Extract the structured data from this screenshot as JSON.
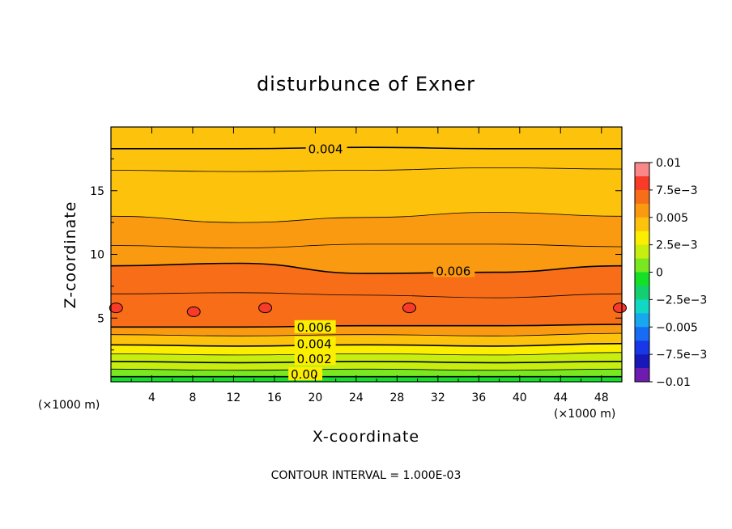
{
  "chart_data": {
    "type": "contour",
    "title": "disturbunce of Exner",
    "xlabel": "X-coordinate",
    "ylabel": "Z-coordinate",
    "x_unit": "(×1000 m)",
    "y_unit": "(×1000 m)",
    "xlim": [
      0,
      50
    ],
    "ylim": [
      0,
      20
    ],
    "x_ticks": [
      4,
      8,
      12,
      16,
      20,
      24,
      28,
      32,
      36,
      40,
      44,
      48
    ],
    "y_ticks": [
      5,
      10,
      15
    ],
    "contour_interval": "CONTOUR INTERVAL = 1.000E-03",
    "colorbar": {
      "min": -0.01,
      "max": 0.01,
      "step": 0.00125,
      "tick_labels": [
        "0.01",
        "7.5e−3",
        "0.005",
        "2.5e−3",
        "0",
        "−2.5e−3",
        "−0.005",
        "−7.5e−3",
        "−0.01"
      ],
      "colors": [
        "#fa8888",
        "#f83a28",
        "#f86e18",
        "#fa9a10",
        "#fcc20c",
        "#fcee00",
        "#c8ee10",
        "#7ae820",
        "#14e028",
        "#12d070",
        "#10d8c4",
        "#18a8f0",
        "#186cf4",
        "#1838e8",
        "#1818b8",
        "#6e1cb0"
      ]
    },
    "contour_labels": [
      {
        "text": "0.004",
        "x": 19.3,
        "z": 18.2
      },
      {
        "text": "0.006",
        "x": 31.8,
        "z": 8.6
      },
      {
        "text": "0.006",
        "x": 18.2,
        "z": 4.2
      },
      {
        "text": "0.004",
        "x": 18.2,
        "z": 2.9
      },
      {
        "text": "0.002",
        "x": 18.2,
        "z": 1.7
      },
      {
        "text": "0.00",
        "x": 17.6,
        "z": 0.5
      }
    ],
    "bands": [
      {
        "z": [
          18.3,
          18.3,
          18.4,
          18.3,
          18.3
        ],
        "level": 0.004
      },
      {
        "z": [
          16.6,
          16.5,
          16.6,
          16.8,
          16.7
        ],
        "level": 0.0045
      },
      {
        "z": [
          13.0,
          12.5,
          12.9,
          13.3,
          13.0
        ],
        "level": 0.005
      },
      {
        "z": [
          10.7,
          10.5,
          10.8,
          10.8,
          10.6
        ],
        "level": 0.0055
      },
      {
        "z": [
          9.1,
          9.3,
          8.5,
          8.6,
          9.1
        ],
        "level": 0.006
      },
      {
        "z": [
          6.9,
          7.0,
          6.8,
          6.6,
          6.9
        ],
        "level": 0.0065
      },
      {
        "z": [
          4.3,
          4.3,
          4.4,
          4.4,
          4.5
        ],
        "level": 0.006
      },
      {
        "z": [
          3.7,
          3.6,
          3.7,
          3.6,
          3.8
        ],
        "level": 0.005
      },
      {
        "z": [
          2.9,
          2.8,
          2.9,
          2.8,
          3.0
        ],
        "level": 0.004
      },
      {
        "z": [
          2.2,
          2.1,
          2.2,
          2.1,
          2.3
        ],
        "level": 0.003
      },
      {
        "z": [
          1.6,
          1.5,
          1.6,
          1.5,
          1.6
        ],
        "level": 0.002
      },
      {
        "z": [
          1.0,
          0.9,
          1.0,
          0.9,
          1.0
        ],
        "level": 0.001
      },
      {
        "z": [
          0.4,
          0.4,
          0.4,
          0.4,
          0.4
        ],
        "level": 0.0
      }
    ],
    "blobs": [
      {
        "x": 0.5,
        "z": 5.8
      },
      {
        "x": 8.1,
        "z": 5.5
      },
      {
        "x": 15.1,
        "z": 5.8
      },
      {
        "x": 29.2,
        "z": 5.8
      },
      {
        "x": 49.8,
        "z": 5.8
      }
    ]
  }
}
